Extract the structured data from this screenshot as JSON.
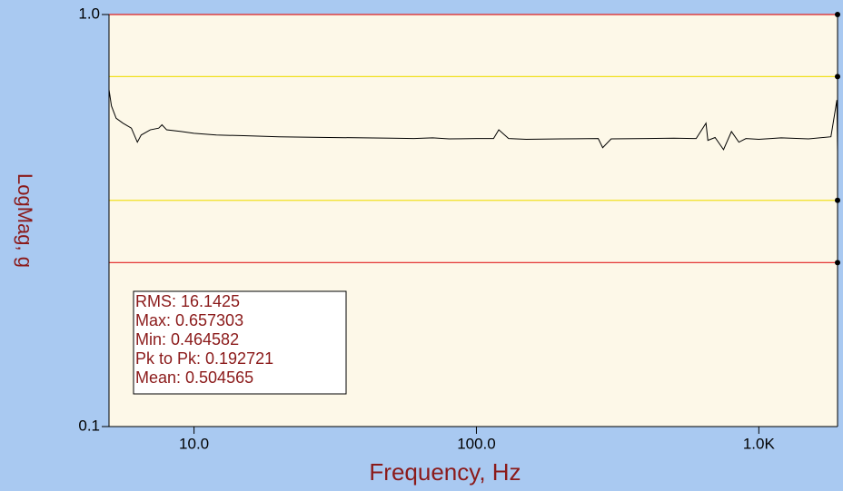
{
  "chart_data": {
    "type": "line",
    "x_label": "Frequency, Hz",
    "y_label": "LogMag, g",
    "xlog": true,
    "ylog": true,
    "xlim": [
      5,
      1900
    ],
    "ylim": [
      0.1,
      1
    ],
    "xticks": [
      {
        "value": 10,
        "label": "10.0"
      },
      {
        "value": 100,
        "label": "100.0"
      },
      {
        "value": 1000,
        "label": "1.0K"
      }
    ],
    "yticks": [
      0.1,
      {
        "value": 1,
        "label": "1.0"
      }
    ],
    "limit_lines": [
      {
        "value": 1,
        "color": "#e02020"
      },
      {
        "value": 0.707,
        "color": "#f0e020"
      },
      {
        "value": 0.354,
        "color": "#f0e020"
      },
      {
        "value": 0.25,
        "color": "#e02020"
      }
    ],
    "annotations": [
      "RMS: 16.1425",
      "Max: 0.657303",
      "Min: 0.464582",
      "Pk to Pk: 0.192721",
      "Mean: 0.504565"
    ],
    "x": [
      5,
      5.1,
      5.3,
      5.6,
      6.0,
      6.3,
      6.5,
      7.0,
      7.5,
      7.7,
      8,
      9,
      10,
      12,
      15,
      20,
      30,
      40,
      50,
      60,
      70,
      80,
      100,
      115,
      120,
      130,
      150,
      200,
      270,
      280,
      300,
      400,
      500,
      600,
      650,
      660,
      700,
      750,
      800,
      850,
      900,
      1000,
      1200,
      1500,
      1800,
      1890,
      1900
    ],
    "series": [
      {
        "color": "#000000",
        "values": [
          0.657,
          0.6,
          0.56,
          0.545,
          0.53,
          0.49,
          0.51,
          0.525,
          0.53,
          0.54,
          0.525,
          0.52,
          0.515,
          0.51,
          0.508,
          0.505,
          0.503,
          0.502,
          0.501,
          0.5,
          0.502,
          0.499,
          0.5,
          0.5,
          0.525,
          0.5,
          0.498,
          0.499,
          0.5,
          0.475,
          0.499,
          0.5,
          0.501,
          0.5,
          0.545,
          0.495,
          0.503,
          0.47,
          0.52,
          0.49,
          0.5,
          0.498,
          0.502,
          0.499,
          0.505,
          0.62,
          0.465
        ]
      }
    ]
  }
}
